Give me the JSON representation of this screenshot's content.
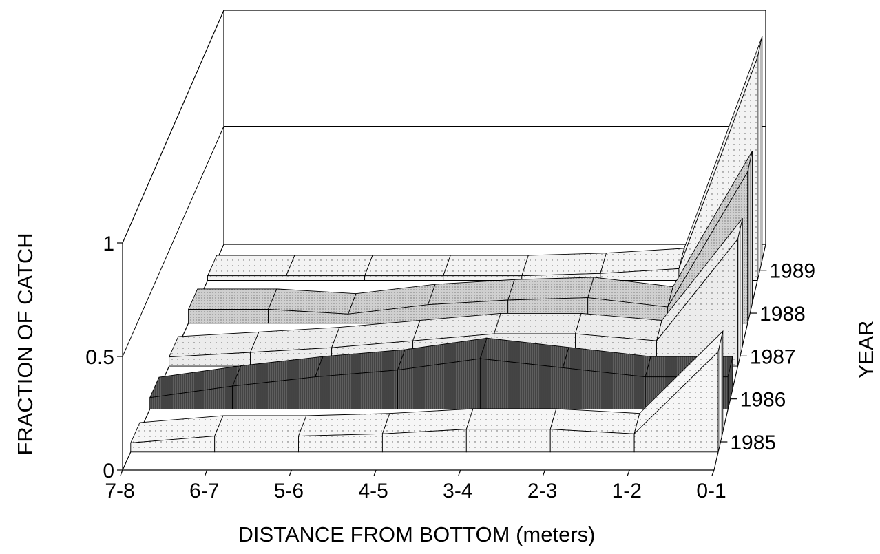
{
  "chart_data": {
    "type": "area",
    "title": "",
    "xlabel": "DISTANCE FROM BOTTOM (meters)",
    "ylabel": "FRACTION OF CATCH",
    "zlabel": "YEAR",
    "categories": [
      "7-8",
      "6-7",
      "5-6",
      "4-5",
      "3-4",
      "2-3",
      "1-2",
      "0-1"
    ],
    "y_ticks": [
      "0",
      "0.5",
      "1"
    ],
    "ylim": [
      0,
      1
    ],
    "years": [
      "1985",
      "1986",
      "1987",
      "1988",
      "1989"
    ],
    "series": [
      {
        "name": "1985",
        "color": "#f6f6f6",
        "values": [
          0.04,
          0.07,
          0.07,
          0.08,
          0.1,
          0.1,
          0.08,
          0.44
        ]
      },
      {
        "name": "1986",
        "color": "#5e5e5e",
        "values": [
          0.05,
          0.1,
          0.14,
          0.17,
          0.22,
          0.18,
          0.14,
          0.14
        ]
      },
      {
        "name": "1987",
        "color": "#ececec",
        "values": [
          0.04,
          0.06,
          0.08,
          0.11,
          0.14,
          0.14,
          0.11,
          0.55
        ]
      },
      {
        "name": "1988",
        "color": "#cfcfcf",
        "values": [
          0.06,
          0.06,
          0.04,
          0.08,
          0.1,
          0.11,
          0.07,
          0.65
        ]
      },
      {
        "name": "1989",
        "color": "#f3f3f3",
        "values": [
          0.02,
          0.02,
          0.02,
          0.02,
          0.02,
          0.03,
          0.05,
          0.95
        ]
      }
    ]
  }
}
